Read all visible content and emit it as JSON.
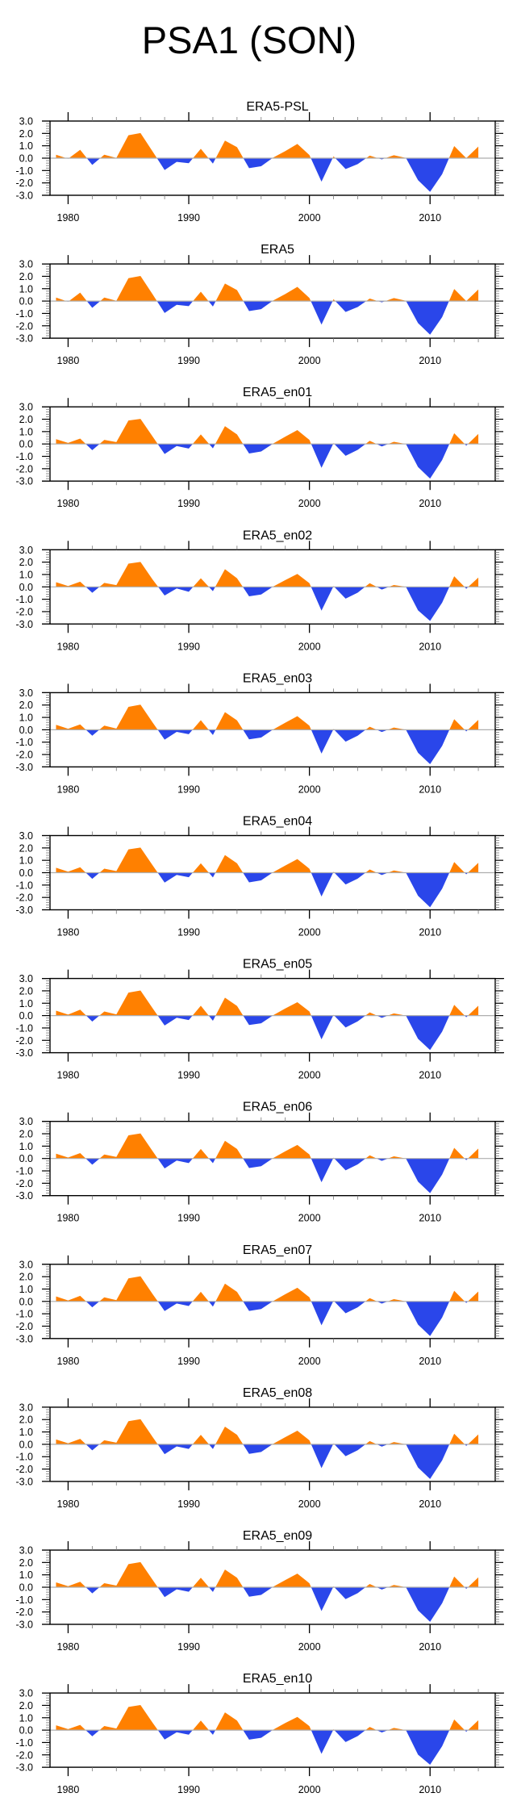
{
  "title": "PSA1 (SON)",
  "colors": {
    "positive": "#FF8000",
    "negative": "#2A46EA",
    "zero_line": "#AEAEAE",
    "axis": "#000000"
  },
  "chart_data": [
    {
      "type": "area",
      "title": "ERA5-PSL",
      "xlabel": "",
      "ylabel": "",
      "x": [
        1979,
        1980,
        1981,
        1982,
        1983,
        1984,
        1985,
        1986,
        1987,
        1988,
        1989,
        1990,
        1991,
        1992,
        1993,
        1994,
        1995,
        1996,
        1997,
        1998,
        1999,
        2000,
        2001,
        2002,
        2003,
        2004,
        2005,
        2006,
        2007,
        2008,
        2009,
        2010,
        2011,
        2012,
        2013,
        2014
      ],
      "values": [
        0.28,
        -0.05,
        0.68,
        -0.55,
        0.28,
        0.02,
        1.85,
        2.03,
        0.55,
        -0.96,
        -0.3,
        -0.41,
        0.76,
        -0.44,
        1.42,
        0.89,
        -0.81,
        -0.65,
        0.05,
        0.57,
        1.15,
        0.25,
        -1.9,
        0.15,
        -0.88,
        -0.48,
        0.2,
        -0.1,
        0.24,
        0.02,
        -1.78,
        -2.72,
        -1.3,
        0.98,
        0.0,
        0.94
      ],
      "xlim": [
        1978.5,
        2015.4
      ],
      "ylim": [
        -3.0,
        3.0
      ],
      "xticks": [
        1980,
        1990,
        2000,
        2010
      ],
      "yticks": [
        "3.0",
        "2.0",
        "1.0",
        "0.0",
        "-1.0",
        "-2.0",
        "-3.0"
      ],
      "grid": false,
      "legend": "none"
    },
    {
      "type": "area",
      "title": "ERA5",
      "xlabel": "",
      "ylabel": "",
      "x": [
        1979,
        1980,
        1981,
        1982,
        1983,
        1984,
        1985,
        1986,
        1987,
        1988,
        1989,
        1990,
        1991,
        1992,
        1993,
        1994,
        1995,
        1996,
        1997,
        1998,
        1999,
        2000,
        2001,
        2002,
        2003,
        2004,
        2005,
        2006,
        2007,
        2008,
        2009,
        2010,
        2011,
        2012,
        2013,
        2014
      ],
      "values": [
        0.28,
        -0.05,
        0.68,
        -0.55,
        0.28,
        0.02,
        1.85,
        2.03,
        0.55,
        -0.96,
        -0.3,
        -0.41,
        0.76,
        -0.44,
        1.42,
        0.89,
        -0.81,
        -0.65,
        0.05,
        0.57,
        1.15,
        0.25,
        -1.9,
        0.15,
        -0.88,
        -0.48,
        0.2,
        -0.1,
        0.24,
        0.02,
        -1.78,
        -2.72,
        -1.3,
        0.98,
        0.0,
        0.94
      ],
      "xlim": [
        1978.5,
        2015.4
      ],
      "ylim": [
        -3.0,
        3.0
      ],
      "xticks": [
        1980,
        1990,
        2000,
        2010
      ],
      "yticks": [
        "3.0",
        "2.0",
        "1.0",
        "0.0",
        "-1.0",
        "-2.0",
        "-3.0"
      ],
      "grid": false,
      "legend": "none"
    },
    {
      "type": "area",
      "title": "ERA5_en01",
      "xlabel": "",
      "ylabel": "",
      "x": [
        1979,
        1980,
        1981,
        1982,
        1983,
        1984,
        1985,
        1986,
        1987,
        1988,
        1989,
        1990,
        1991,
        1992,
        1993,
        1994,
        1995,
        1996,
        1997,
        1998,
        1999,
        2000,
        2001,
        2002,
        2003,
        2004,
        2005,
        2006,
        2007,
        2008,
        2009,
        2010,
        2011,
        2012,
        2013,
        2014
      ],
      "values": [
        0.39,
        0.09,
        0.44,
        -0.5,
        0.33,
        0.15,
        1.9,
        2.03,
        0.61,
        -0.81,
        -0.17,
        -0.37,
        0.77,
        -0.35,
        1.44,
        0.77,
        -0.77,
        -0.61,
        0.04,
        0.59,
        1.12,
        0.33,
        -1.93,
        0.07,
        -0.96,
        -0.48,
        0.26,
        -0.2,
        0.18,
        0.0,
        -1.86,
        -2.8,
        -1.3,
        0.87,
        -0.13,
        0.81
      ],
      "xlim": [
        1978.5,
        2015.4
      ],
      "ylim": [
        -3.0,
        3.0
      ],
      "xticks": [
        1980,
        1990,
        2000,
        2010
      ],
      "yticks": [
        "3.0",
        "2.0",
        "1.0",
        "0.0",
        "-1.0",
        "-2.0",
        "-3.0"
      ],
      "grid": false,
      "legend": "none"
    },
    {
      "type": "area",
      "title": "ERA5_en02",
      "xlabel": "",
      "ylabel": "",
      "x": [
        1979,
        1980,
        1981,
        1982,
        1983,
        1984,
        1985,
        1986,
        1987,
        1988,
        1989,
        1990,
        1991,
        1992,
        1993,
        1994,
        1995,
        1996,
        1997,
        1998,
        1999,
        2000,
        2001,
        2002,
        2003,
        2004,
        2005,
        2006,
        2007,
        2008,
        2009,
        2010,
        2011,
        2012,
        2013,
        2014
      ],
      "values": [
        0.38,
        0.07,
        0.42,
        -0.48,
        0.32,
        0.14,
        1.88,
        2.02,
        0.6,
        -0.7,
        -0.13,
        -0.4,
        0.7,
        -0.35,
        1.43,
        0.7,
        -0.76,
        -0.62,
        0.03,
        0.55,
        1.05,
        0.3,
        -1.92,
        0.06,
        -0.95,
        -0.47,
        0.3,
        -0.22,
        0.15,
        0.0,
        -1.9,
        -2.75,
        -1.28,
        0.86,
        -0.15,
        0.75
      ],
      "xlim": [
        1978.5,
        2015.4
      ],
      "ylim": [
        -3.0,
        3.0
      ],
      "xticks": [
        1980,
        1990,
        2000,
        2010
      ],
      "yticks": [
        "3.0",
        "2.0",
        "1.0",
        "0.0",
        "-1.0",
        "-2.0",
        "-3.0"
      ],
      "grid": false,
      "legend": "none"
    },
    {
      "type": "area",
      "title": "ERA5_en03",
      "xlabel": "",
      "ylabel": "",
      "x": [
        1979,
        1980,
        1981,
        1982,
        1983,
        1984,
        1985,
        1986,
        1987,
        1988,
        1989,
        1990,
        1991,
        1992,
        1993,
        1994,
        1995,
        1996,
        1997,
        1998,
        1999,
        2000,
        2001,
        2002,
        2003,
        2004,
        2005,
        2006,
        2007,
        2008,
        2009,
        2010,
        2011,
        2012,
        2013,
        2014
      ],
      "values": [
        0.4,
        0.08,
        0.43,
        -0.48,
        0.34,
        0.1,
        1.85,
        2.03,
        0.6,
        -0.8,
        -0.17,
        -0.36,
        0.78,
        -0.42,
        1.43,
        0.76,
        -0.77,
        -0.63,
        0.03,
        0.57,
        1.1,
        0.33,
        -1.92,
        0.06,
        -0.96,
        -0.48,
        0.25,
        -0.18,
        0.18,
        0.0,
        -1.86,
        -2.78,
        -1.3,
        0.86,
        -0.13,
        0.8
      ],
      "xlim": [
        1978.5,
        2015.4
      ],
      "ylim": [
        -3.0,
        3.0
      ],
      "xticks": [
        1980,
        1990,
        2000,
        2010
      ],
      "yticks": [
        "3.0",
        "2.0",
        "1.0",
        "0.0",
        "-1.0",
        "-2.0",
        "-3.0"
      ],
      "grid": false,
      "legend": "none"
    },
    {
      "type": "area",
      "title": "ERA5_en04",
      "xlabel": "",
      "ylabel": "",
      "x": [
        1979,
        1980,
        1981,
        1982,
        1983,
        1984,
        1985,
        1986,
        1987,
        1988,
        1989,
        1990,
        1991,
        1992,
        1993,
        1994,
        1995,
        1996,
        1997,
        1998,
        1999,
        2000,
        2001,
        2002,
        2003,
        2004,
        2005,
        2006,
        2007,
        2008,
        2009,
        2010,
        2011,
        2012,
        2013,
        2014
      ],
      "values": [
        0.4,
        0.08,
        0.44,
        -0.5,
        0.33,
        0.13,
        1.88,
        2.03,
        0.6,
        -0.8,
        -0.18,
        -0.37,
        0.76,
        -0.38,
        1.43,
        0.76,
        -0.78,
        -0.62,
        0.04,
        0.58,
        1.1,
        0.32,
        -1.92,
        0.07,
        -0.95,
        -0.48,
        0.26,
        -0.19,
        0.18,
        0.0,
        -1.87,
        -2.8,
        -1.3,
        0.86,
        -0.13,
        0.8
      ],
      "xlim": [
        1978.5,
        2015.4
      ],
      "ylim": [
        -3.0,
        3.0
      ],
      "xticks": [
        1980,
        1990,
        2000,
        2010
      ],
      "yticks": [
        "3.0",
        "2.0",
        "1.0",
        "0.0",
        "-1.0",
        "-2.0",
        "-3.0"
      ],
      "grid": false,
      "legend": "none"
    },
    {
      "type": "area",
      "title": "ERA5_en05",
      "xlabel": "",
      "ylabel": "",
      "x": [
        1979,
        1980,
        1981,
        1982,
        1983,
        1984,
        1985,
        1986,
        1987,
        1988,
        1989,
        1990,
        1991,
        1992,
        1993,
        1994,
        1995,
        1996,
        1997,
        1998,
        1999,
        2000,
        2001,
        2002,
        2003,
        2004,
        2005,
        2006,
        2007,
        2008,
        2009,
        2010,
        2011,
        2012,
        2013,
        2014
      ],
      "values": [
        0.4,
        0.08,
        0.48,
        -0.48,
        0.33,
        0.1,
        1.86,
        2.03,
        0.6,
        -0.8,
        -0.17,
        -0.36,
        0.8,
        -0.42,
        1.45,
        0.78,
        -0.76,
        -0.62,
        0.03,
        0.58,
        1.08,
        0.33,
        -1.92,
        0.06,
        -0.96,
        -0.47,
        0.26,
        -0.18,
        0.18,
        0.0,
        -1.88,
        -2.78,
        -1.3,
        0.87,
        -0.13,
        0.8
      ],
      "xlim": [
        1978.5,
        2015.4
      ],
      "ylim": [
        -3.0,
        3.0
      ],
      "xticks": [
        1980,
        1990,
        2000,
        2010
      ],
      "yticks": [
        "3.0",
        "2.0",
        "1.0",
        "0.0",
        "-1.0",
        "-2.0",
        "-3.0"
      ],
      "grid": false,
      "legend": "none"
    },
    {
      "type": "area",
      "title": "ERA5_en06",
      "xlabel": "",
      "ylabel": "",
      "x": [
        1979,
        1980,
        1981,
        1982,
        1983,
        1984,
        1985,
        1986,
        1987,
        1988,
        1989,
        1990,
        1991,
        1992,
        1993,
        1994,
        1995,
        1996,
        1997,
        1998,
        1999,
        2000,
        2001,
        2002,
        2003,
        2004,
        2005,
        2006,
        2007,
        2008,
        2009,
        2010,
        2011,
        2012,
        2013,
        2014
      ],
      "values": [
        0.39,
        0.08,
        0.44,
        -0.5,
        0.32,
        0.13,
        1.87,
        2.03,
        0.6,
        -0.8,
        -0.17,
        -0.37,
        0.77,
        -0.38,
        1.43,
        0.77,
        -0.77,
        -0.62,
        0.04,
        0.58,
        1.1,
        0.32,
        -1.92,
        0.07,
        -0.96,
        -0.48,
        0.26,
        -0.19,
        0.18,
        0.0,
        -1.87,
        -2.8,
        -1.3,
        0.86,
        -0.13,
        0.8
      ],
      "xlim": [
        1978.5,
        2015.4
      ],
      "ylim": [
        -3.0,
        3.0
      ],
      "xticks": [
        1980,
        1990,
        2000,
        2010
      ],
      "yticks": [
        "3.0",
        "2.0",
        "1.0",
        "0.0",
        "-1.0",
        "-2.0",
        "-3.0"
      ],
      "grid": false,
      "legend": "none"
    },
    {
      "type": "area",
      "title": "ERA5_en07",
      "xlabel": "",
      "ylabel": "",
      "x": [
        1979,
        1980,
        1981,
        1982,
        1983,
        1984,
        1985,
        1986,
        1987,
        1988,
        1989,
        1990,
        1991,
        1992,
        1993,
        1994,
        1995,
        1996,
        1997,
        1998,
        1999,
        2000,
        2001,
        2002,
        2003,
        2004,
        2005,
        2006,
        2007,
        2008,
        2009,
        2010,
        2011,
        2012,
        2013,
        2014
      ],
      "values": [
        0.4,
        0.08,
        0.45,
        -0.48,
        0.33,
        0.1,
        1.86,
        2.03,
        0.6,
        -0.78,
        -0.17,
        -0.37,
        0.78,
        -0.42,
        1.44,
        0.77,
        -0.77,
        -0.62,
        0.03,
        0.58,
        1.1,
        0.33,
        -1.93,
        0.06,
        -0.96,
        -0.48,
        0.26,
        -0.18,
        0.18,
        0.0,
        -1.87,
        -2.8,
        -1.3,
        0.86,
        -0.13,
        0.8
      ],
      "xlim": [
        1978.5,
        2015.4
      ],
      "ylim": [
        -3.0,
        3.0
      ],
      "xticks": [
        1980,
        1990,
        2000,
        2010
      ],
      "yticks": [
        "3.0",
        "2.0",
        "1.0",
        "0.0",
        "-1.0",
        "-2.0",
        "-3.0"
      ],
      "grid": false,
      "legend": "none"
    },
    {
      "type": "area",
      "title": "ERA5_en08",
      "xlabel": "",
      "ylabel": "",
      "x": [
        1979,
        1980,
        1981,
        1982,
        1983,
        1984,
        1985,
        1986,
        1987,
        1988,
        1989,
        1990,
        1991,
        1992,
        1993,
        1994,
        1995,
        1996,
        1997,
        1998,
        1999,
        2000,
        2001,
        2002,
        2003,
        2004,
        2005,
        2006,
        2007,
        2008,
        2009,
        2010,
        2011,
        2012,
        2013,
        2014
      ],
      "values": [
        0.39,
        0.08,
        0.44,
        -0.49,
        0.33,
        0.13,
        1.87,
        2.03,
        0.6,
        -0.8,
        -0.17,
        -0.37,
        0.77,
        -0.38,
        1.43,
        0.77,
        -0.77,
        -0.62,
        0.04,
        0.58,
        1.1,
        0.32,
        -1.92,
        0.07,
        -0.96,
        -0.48,
        0.26,
        -0.19,
        0.18,
        0.0,
        -1.87,
        -2.8,
        -1.3,
        0.86,
        -0.13,
        0.8
      ],
      "xlim": [
        1978.5,
        2015.4
      ],
      "ylim": [
        -3.0,
        3.0
      ],
      "xticks": [
        1980,
        1990,
        2000,
        2010
      ],
      "yticks": [
        "3.0",
        "2.0",
        "1.0",
        "0.0",
        "-1.0",
        "-2.0",
        "-3.0"
      ],
      "grid": false,
      "legend": "none"
    },
    {
      "type": "area",
      "title": "ERA5_en09",
      "xlabel": "",
      "ylabel": "",
      "x": [
        1979,
        1980,
        1981,
        1982,
        1983,
        1984,
        1985,
        1986,
        1987,
        1988,
        1989,
        1990,
        1991,
        1992,
        1993,
        1994,
        1995,
        1996,
        1997,
        1998,
        1999,
        2000,
        2001,
        2002,
        2003,
        2004,
        2005,
        2006,
        2007,
        2008,
        2009,
        2010,
        2011,
        2012,
        2013,
        2014
      ],
      "values": [
        0.39,
        0.08,
        0.44,
        -0.5,
        0.33,
        0.13,
        1.87,
        2.03,
        0.6,
        -0.8,
        -0.17,
        -0.37,
        0.77,
        -0.38,
        1.43,
        0.77,
        -0.77,
        -0.62,
        0.04,
        0.58,
        1.1,
        0.32,
        -1.92,
        0.07,
        -0.96,
        -0.48,
        0.26,
        -0.19,
        0.18,
        0.0,
        -1.87,
        -2.8,
        -1.3,
        0.86,
        -0.13,
        0.8
      ],
      "xlim": [
        1978.5,
        2015.4
      ],
      "ylim": [
        -3.0,
        3.0
      ],
      "xticks": [
        1980,
        1990,
        2000,
        2010
      ],
      "yticks": [
        "3.0",
        "2.0",
        "1.0",
        "0.0",
        "-1.0",
        "-2.0",
        "-3.0"
      ],
      "grid": false,
      "legend": "none"
    },
    {
      "type": "area",
      "title": "ERA5_en10",
      "xlabel": "",
      "ylabel": "",
      "x": [
        1979,
        1980,
        1981,
        1982,
        1983,
        1984,
        1985,
        1986,
        1987,
        1988,
        1989,
        1990,
        1991,
        1992,
        1993,
        1994,
        1995,
        1996,
        1997,
        1998,
        1999,
        2000,
        2001,
        2002,
        2003,
        2004,
        2005,
        2006,
        2007,
        2008,
        2009,
        2010,
        2011,
        2012,
        2013,
        2014
      ],
      "values": [
        0.39,
        0.08,
        0.42,
        -0.5,
        0.33,
        0.13,
        1.87,
        2.03,
        0.6,
        -0.76,
        -0.17,
        -0.37,
        0.77,
        -0.38,
        1.43,
        0.77,
        -0.77,
        -0.62,
        0.04,
        0.58,
        1.07,
        0.32,
        -1.92,
        0.07,
        -0.96,
        -0.48,
        0.26,
        -0.19,
        0.18,
        0.0,
        -1.98,
        -2.8,
        -1.3,
        0.86,
        -0.13,
        0.8
      ],
      "xlim": [
        1978.5,
        2015.4
      ],
      "ylim": [
        -3.0,
        3.0
      ],
      "xticks": [
        1980,
        1990,
        2000,
        2010
      ],
      "yticks": [
        "3.0",
        "2.0",
        "1.0",
        "0.0",
        "-1.0",
        "-2.0",
        "-3.0"
      ],
      "grid": false,
      "legend": "none"
    }
  ]
}
